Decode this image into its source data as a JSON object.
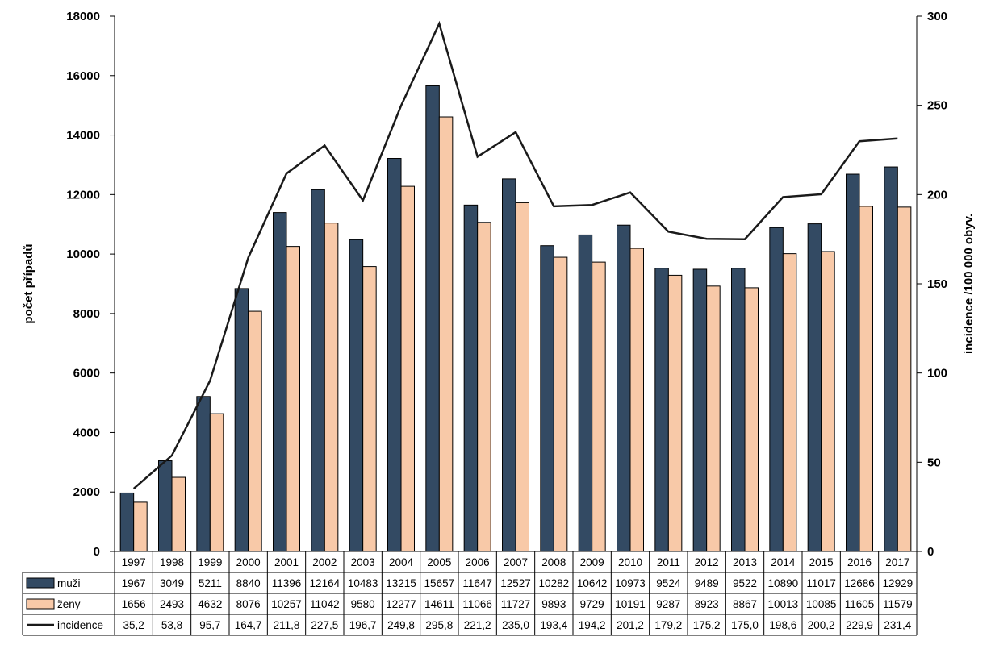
{
  "chart_data": {
    "type": "bar",
    "categories": [
      "1997",
      "1998",
      "1999",
      "2000",
      "2001",
      "2002",
      "2003",
      "2004",
      "2005",
      "2006",
      "2007",
      "2008",
      "2009",
      "2010",
      "2011",
      "2012",
      "2013",
      "2014",
      "2015",
      "2016",
      "2017"
    ],
    "series": [
      {
        "name": "muži",
        "kind": "bar",
        "axis": "left",
        "color": "#334a63",
        "values": [
          1967,
          3049,
          5211,
          8840,
          11396,
          12164,
          10483,
          13215,
          15657,
          11647,
          12527,
          10282,
          10642,
          10973,
          9524,
          9489,
          9522,
          10890,
          11017,
          12686,
          12929
        ],
        "labels": [
          "1967",
          "3049",
          "5211",
          "8840",
          "11396",
          "12164",
          "10483",
          "13215",
          "15657",
          "11647",
          "12527",
          "10282",
          "10642",
          "10973",
          "9524",
          "9489",
          "9522",
          "10890",
          "11017",
          "12686",
          "12929"
        ]
      },
      {
        "name": "ženy",
        "kind": "bar",
        "axis": "left",
        "color": "#f8c9a8",
        "values": [
          1656,
          2493,
          4632,
          8076,
          10257,
          11042,
          9580,
          12277,
          14611,
          11066,
          11727,
          9893,
          9729,
          10191,
          9287,
          8923,
          8867,
          10013,
          10085,
          11605,
          11579
        ],
        "labels": [
          "1656",
          "2493",
          "4632",
          "8076",
          "10257",
          "11042",
          "9580",
          "12277",
          "14611",
          "11066",
          "11727",
          "9893",
          "9729",
          "10191",
          "9287",
          "8923",
          "8867",
          "10013",
          "10085",
          "11605",
          "11579"
        ]
      },
      {
        "name": "incidence",
        "kind": "line",
        "axis": "right",
        "color": "#1a1a1a",
        "values": [
          35.2,
          53.8,
          95.7,
          164.7,
          211.8,
          227.5,
          196.7,
          249.8,
          295.8,
          221.2,
          235.0,
          193.4,
          194.2,
          201.2,
          179.2,
          175.2,
          175.0,
          198.6,
          200.2,
          229.9,
          231.4
        ],
        "labels": [
          "35,2",
          "53,8",
          "95,7",
          "164,7",
          "211,8",
          "227,5",
          "196,7",
          "249,8",
          "295,8",
          "221,2",
          "235,0",
          "193,4",
          "194,2",
          "201,2",
          "179,2",
          "175,2",
          "175,0",
          "198,6",
          "200,2",
          "229,9",
          "231,4"
        ]
      }
    ],
    "y_left": {
      "label": "počet případů",
      "ylim": [
        0,
        18000
      ],
      "ticks": [
        "0",
        "2000",
        "4000",
        "6000",
        "8000",
        "10000",
        "12000",
        "14000",
        "16000",
        "18000"
      ]
    },
    "y_right": {
      "label": "incidence /100 000 obyv.",
      "ylim": [
        0,
        300
      ],
      "ticks": [
        "0",
        "50",
        "100",
        "150",
        "200",
        "250",
        "300"
      ]
    },
    "data_table": true,
    "grid": false
  }
}
